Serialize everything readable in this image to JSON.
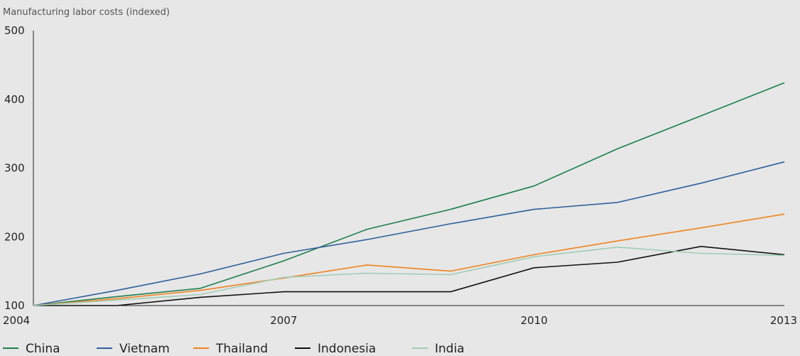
{
  "chart_data": {
    "type": "line",
    "ylabel": "Manufacturing labor costs (indexed)",
    "xlabel": "",
    "x": [
      2004,
      2005,
      2006,
      2007,
      2008,
      2009,
      2010,
      2011,
      2012,
      2013
    ],
    "xticks": [
      "2004",
      "2007",
      "2010",
      "2013"
    ],
    "xlim": [
      2004,
      2013
    ],
    "yticks": [
      "100",
      "200",
      "300",
      "400",
      "500"
    ],
    "ylim": [
      100,
      500
    ],
    "grid": false,
    "legend_position": "bottom-left",
    "series": [
      {
        "name": "China",
        "color": "#1e7d4f",
        "values": [
          100,
          113,
          125,
          165,
          211,
          240,
          274,
          328,
          376,
          424
        ]
      },
      {
        "name": "Vietnam",
        "color": "#2f5f9a",
        "values": [
          100,
          122,
          146,
          176,
          196,
          219,
          240,
          250,
          278,
          309
        ]
      },
      {
        "name": "Thailand",
        "color": "#f08321",
        "values": [
          100,
          110,
          122,
          140,
          159,
          150,
          174,
          194,
          213,
          233
        ]
      },
      {
        "name": "Indonesia",
        "color": "#111111",
        "values": [
          100,
          100,
          112,
          120,
          120,
          120,
          155,
          163,
          186,
          174
        ]
      },
      {
        "name": "India",
        "color": "#a3cbb6",
        "values": [
          100,
          108,
          116,
          141,
          147,
          145,
          171,
          185,
          176,
          173
        ]
      }
    ]
  }
}
